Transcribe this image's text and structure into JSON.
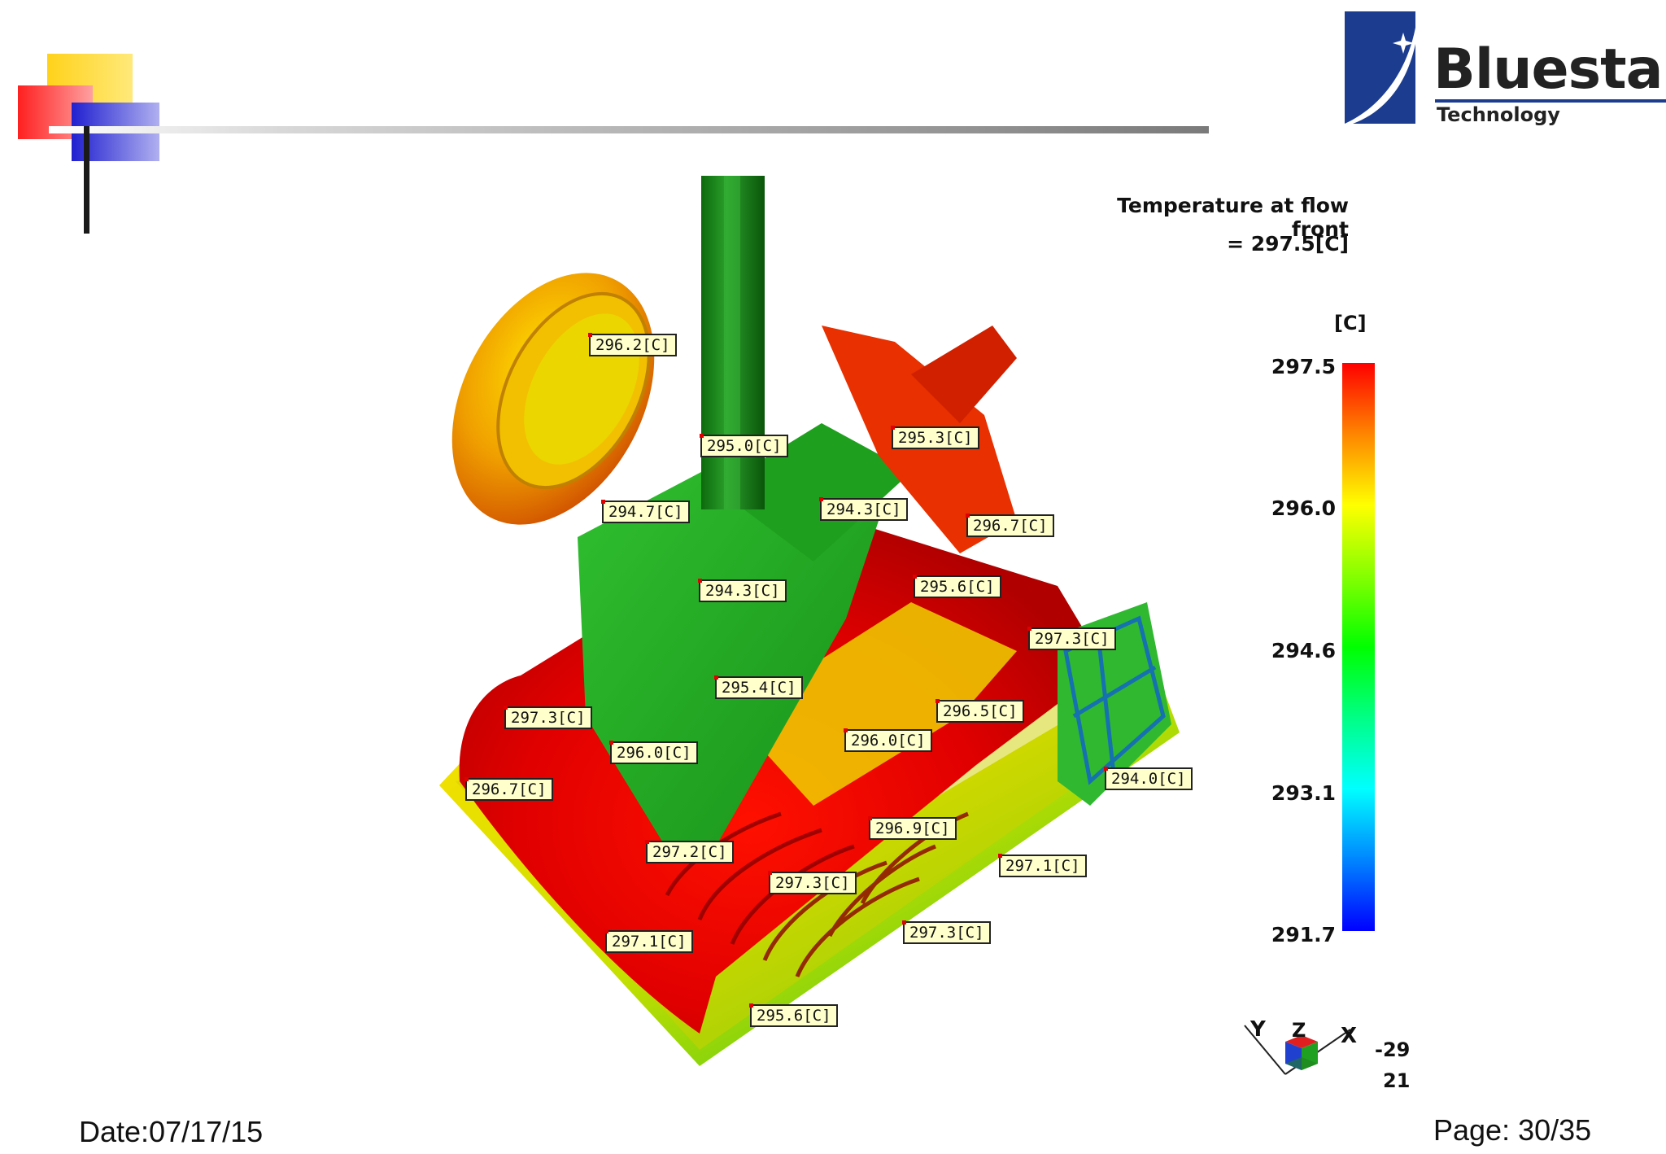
{
  "logo": {
    "title": "Bluestar",
    "subtitle": "Technology"
  },
  "legend": {
    "title": "Temperature at flow front",
    "value": "= 297.5[C]",
    "unit": "[C]",
    "ticks": [
      "297.5",
      "296.0",
      "294.6",
      "293.1",
      "291.7"
    ],
    "max": 297.5,
    "min": 291.7
  },
  "probes": [
    "296.2[C]",
    "295.0[C]",
    "295.3[C]",
    "294.7[C]",
    "294.3[C]",
    "296.7[C]",
    "294.3[C]",
    "295.6[C]",
    "297.3[C]",
    "295.4[C]",
    "296.5[C]",
    "297.3[C]",
    "296.0[C]",
    "296.0[C]",
    "294.0[C]",
    "296.7[C]",
    "296.9[C]",
    "297.2[C]",
    "297.1[C]",
    "297.3[C]",
    "297.1[C]",
    "297.3[C]",
    "295.6[C]"
  ],
  "axes": {
    "y": "Y",
    "z": "Z",
    "x": "X",
    "rot1": "-29",
    "rot2": "21"
  },
  "footer": {
    "date": "Date:07/17/15",
    "page": "Page: 30/35"
  },
  "colors": {
    "brand": "#1c3d8f",
    "label_bg": "#ffffcc"
  }
}
